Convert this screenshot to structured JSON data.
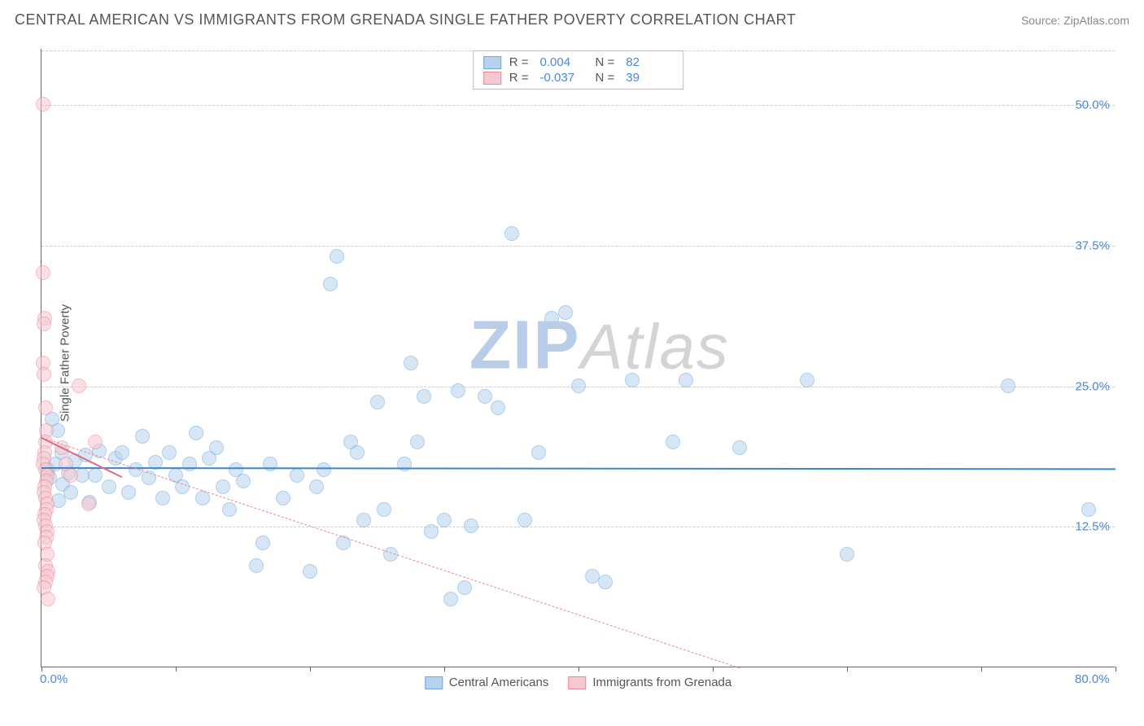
{
  "header": {
    "title": "CENTRAL AMERICAN VS IMMIGRANTS FROM GRENADA SINGLE FATHER POVERTY CORRELATION CHART",
    "source_prefix": "Source: ",
    "source_name": "ZipAtlas.com"
  },
  "ylabel": "Single Father Poverty",
  "watermark": {
    "zip": "ZIP",
    "atlas": "Atlas"
  },
  "axes": {
    "xlim": [
      0,
      80
    ],
    "ylim": [
      0,
      55
    ],
    "xticks": [
      {
        "value": 0,
        "label": "0.0%"
      },
      {
        "value": 10,
        "label": ""
      },
      {
        "value": 20,
        "label": ""
      },
      {
        "value": 30,
        "label": ""
      },
      {
        "value": 40,
        "label": ""
      },
      {
        "value": 50,
        "label": ""
      },
      {
        "value": 60,
        "label": ""
      },
      {
        "value": 70,
        "label": ""
      },
      {
        "value": 80,
        "label": "80.0%"
      }
    ],
    "yticks": [
      {
        "value": 12.5,
        "label": "12.5%"
      },
      {
        "value": 25.0,
        "label": "25.0%"
      },
      {
        "value": 37.5,
        "label": "37.5%"
      },
      {
        "value": 50.0,
        "label": "50.0%"
      }
    ],
    "tick_color": "#4a87d8",
    "grid_color": "#cccccc",
    "axis_color": "#666666"
  },
  "series": [
    {
      "id": "ca",
      "label": "Central Americans",
      "fill": "#b7d2ec",
      "stroke": "#6fa8dc",
      "fill_opacity": 0.55,
      "r_value_label": "R =",
      "r_value": "0.004",
      "n_label": "N =",
      "n_value": "82",
      "marker_radius": 9,
      "trend": {
        "y_at_x0": 17.8,
        "y_at_xmax": 17.7,
        "line_color": "#3d85c6",
        "line_width": 2,
        "dash": "none"
      },
      "points": [
        [
          0.5,
          17.5
        ],
        [
          0.6,
          16.8
        ],
        [
          0.8,
          22.0
        ],
        [
          1.0,
          18.0
        ],
        [
          1.2,
          21.0
        ],
        [
          1.3,
          14.8
        ],
        [
          1.5,
          19.0
        ],
        [
          1.6,
          16.2
        ],
        [
          2.0,
          17.2
        ],
        [
          2.2,
          15.5
        ],
        [
          2.5,
          18.3
        ],
        [
          3.0,
          17.0
        ],
        [
          3.3,
          18.8
        ],
        [
          3.6,
          14.6
        ],
        [
          4.0,
          17.0
        ],
        [
          4.3,
          19.2
        ],
        [
          5.0,
          16.0
        ],
        [
          5.5,
          18.5
        ],
        [
          6.0,
          19.0
        ],
        [
          6.5,
          15.5
        ],
        [
          7.0,
          17.5
        ],
        [
          7.5,
          20.5
        ],
        [
          8.0,
          16.8
        ],
        [
          8.5,
          18.2
        ],
        [
          9.0,
          15.0
        ],
        [
          9.5,
          19.0
        ],
        [
          10.0,
          17.0
        ],
        [
          10.5,
          16.0
        ],
        [
          11.0,
          18.0
        ],
        [
          11.5,
          20.8
        ],
        [
          12.0,
          15.0
        ],
        [
          12.5,
          18.5
        ],
        [
          13.0,
          19.5
        ],
        [
          13.5,
          16.0
        ],
        [
          14.0,
          14.0
        ],
        [
          14.5,
          17.5
        ],
        [
          15.0,
          16.5
        ],
        [
          16.0,
          9.0
        ],
        [
          16.5,
          11.0
        ],
        [
          17.0,
          18.0
        ],
        [
          18.0,
          15.0
        ],
        [
          19.0,
          17.0
        ],
        [
          20.0,
          8.5
        ],
        [
          20.5,
          16.0
        ],
        [
          21.0,
          17.5
        ],
        [
          21.5,
          34.0
        ],
        [
          22.0,
          36.5
        ],
        [
          22.5,
          11.0
        ],
        [
          23.0,
          20.0
        ],
        [
          23.5,
          19.0
        ],
        [
          24.0,
          13.0
        ],
        [
          25.0,
          23.5
        ],
        [
          25.5,
          14.0
        ],
        [
          26.0,
          10.0
        ],
        [
          27.0,
          18.0
        ],
        [
          27.5,
          27.0
        ],
        [
          28.0,
          20.0
        ],
        [
          28.5,
          24.0
        ],
        [
          29.0,
          12.0
        ],
        [
          30.0,
          13.0
        ],
        [
          30.5,
          6.0
        ],
        [
          31.0,
          24.5
        ],
        [
          31.5,
          7.0
        ],
        [
          32.0,
          12.5
        ],
        [
          33.0,
          24.0
        ],
        [
          34.0,
          23.0
        ],
        [
          35.0,
          38.5
        ],
        [
          36.0,
          13.0
        ],
        [
          37.0,
          19.0
        ],
        [
          38.0,
          31.0
        ],
        [
          39.0,
          31.5
        ],
        [
          40.0,
          25.0
        ],
        [
          41.0,
          8.0
        ],
        [
          42.0,
          7.5
        ],
        [
          44.0,
          25.5
        ],
        [
          47.0,
          20.0
        ],
        [
          48.0,
          25.5
        ],
        [
          52.0,
          19.5
        ],
        [
          57.0,
          25.5
        ],
        [
          60.0,
          10.0
        ],
        [
          72.0,
          25.0
        ],
        [
          78.0,
          14.0
        ]
      ]
    },
    {
      "id": "gr",
      "label": "Immigrants from Grenada",
      "fill": "#f6c8d1",
      "stroke": "#e8899c",
      "fill_opacity": 0.55,
      "r_value_label": "R =",
      "r_value": "-0.037",
      "n_label": "N =",
      "n_value": "39",
      "marker_radius": 9,
      "trend": {
        "y_at_x0": 20.5,
        "y_at_xmax": 0.0,
        "line_color": "#e8899c",
        "line_width": 1,
        "dash": "4,4",
        "x_stop": 52
      },
      "trend_solid": {
        "y_at_x0": 20.5,
        "y_at_x": 17.0,
        "x": 6,
        "line_color": "#e06a82",
        "line_width": 2
      },
      "points": [
        [
          0.1,
          50.0
        ],
        [
          0.1,
          35.0
        ],
        [
          0.15,
          27.0
        ],
        [
          0.2,
          26.0
        ],
        [
          0.25,
          31.0
        ],
        [
          0.2,
          30.5
        ],
        [
          0.3,
          23.0
        ],
        [
          0.35,
          21.0
        ],
        [
          0.3,
          20.0
        ],
        [
          0.25,
          19.0
        ],
        [
          0.2,
          18.5
        ],
        [
          0.15,
          18.0
        ],
        [
          0.3,
          17.5
        ],
        [
          0.4,
          17.0
        ],
        [
          0.35,
          16.5
        ],
        [
          0.25,
          16.0
        ],
        [
          0.2,
          15.5
        ],
        [
          0.3,
          15.0
        ],
        [
          0.4,
          14.5
        ],
        [
          0.35,
          14.0
        ],
        [
          0.25,
          13.5
        ],
        [
          0.2,
          13.0
        ],
        [
          0.3,
          12.5
        ],
        [
          0.45,
          12.0
        ],
        [
          0.35,
          11.5
        ],
        [
          0.25,
          11.0
        ],
        [
          0.4,
          10.0
        ],
        [
          0.3,
          9.0
        ],
        [
          0.5,
          8.5
        ],
        [
          0.4,
          8.0
        ],
        [
          0.3,
          7.5
        ],
        [
          0.2,
          7.0
        ],
        [
          0.5,
          6.0
        ],
        [
          1.5,
          19.5
        ],
        [
          1.8,
          18.0
        ],
        [
          2.2,
          17.0
        ],
        [
          2.8,
          25.0
        ],
        [
          3.5,
          14.5
        ],
        [
          4.0,
          20.0
        ]
      ]
    }
  ],
  "legend_bottom": [
    {
      "series": "ca"
    },
    {
      "series": "gr"
    }
  ]
}
